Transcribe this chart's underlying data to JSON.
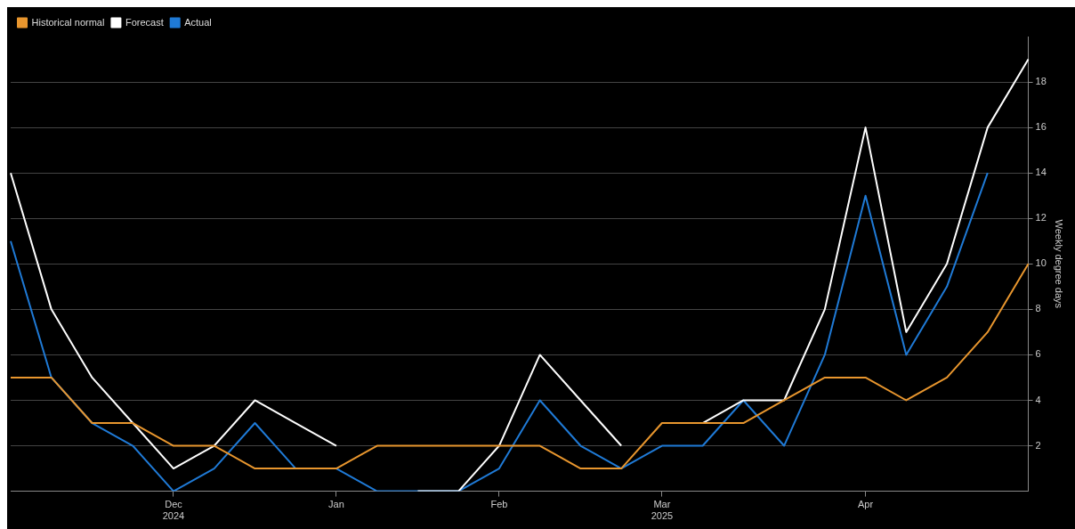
{
  "chart_data": {
    "type": "line",
    "categories": [
      null,
      null,
      null,
      null,
      "Dec 2024",
      null,
      null,
      null,
      "Jan",
      null,
      null,
      null,
      "Feb",
      null,
      null,
      null,
      "Mar 2025",
      null,
      null,
      null,
      null,
      "Apr",
      null,
      null,
      null,
      null
    ],
    "series": [
      {
        "name": "Historical normal",
        "color": "#e8962e",
        "values": [
          5,
          5,
          3,
          3,
          2,
          2,
          1,
          1,
          1,
          2,
          2,
          2,
          2,
          2,
          1,
          1,
          3,
          3,
          3,
          4,
          5,
          5,
          4,
          5,
          7,
          10
        ]
      },
      {
        "name": "Forecast",
        "color": "#ffffff",
        "values": [
          14,
          8,
          5,
          3,
          1,
          2,
          4,
          3,
          2,
          null,
          0,
          0,
          2,
          6,
          4,
          2,
          null,
          3,
          4,
          4,
          8,
          16,
          7,
          10,
          16,
          19
        ]
      },
      {
        "name": "Actual",
        "color": "#1f7ad6",
        "values": [
          11,
          5,
          3,
          2,
          0,
          1,
          3,
          1,
          1,
          0,
          0,
          0,
          1,
          4,
          2,
          1,
          2,
          2,
          4,
          2,
          6,
          13,
          6,
          9,
          14,
          null
        ]
      }
    ],
    "ylabel": "Weekly degree days",
    "ylim": [
      0,
      20
    ],
    "yticks": [
      2,
      4,
      6,
      8,
      10,
      12,
      14,
      16,
      18
    ],
    "grid": "y",
    "legend": "top left",
    "marker": "none",
    "line_style": "solid"
  }
}
